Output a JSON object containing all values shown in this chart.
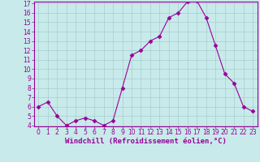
{
  "x": [
    0,
    1,
    2,
    3,
    4,
    5,
    6,
    7,
    8,
    9,
    10,
    11,
    12,
    13,
    14,
    15,
    16,
    17,
    18,
    19,
    20,
    21,
    22,
    23
  ],
  "y": [
    6,
    6.5,
    5,
    4,
    4.5,
    4.8,
    4.5,
    4,
    4.5,
    8,
    11.5,
    12,
    13,
    13.5,
    15.5,
    16,
    17.2,
    17.3,
    15.5,
    12.5,
    9.5,
    8.5,
    6,
    5.5
  ],
  "line_color": "#990099",
  "marker": "D",
  "marker_size": 2.5,
  "bg_color": "#c8eaea",
  "grid_color": "#a8cece",
  "axis_color": "#990099",
  "xlabel": "Windchill (Refroidissement éolien,°C)",
  "ylim_min": 4,
  "ylim_max": 17,
  "xlim_min": -0.5,
  "xlim_max": 23.5,
  "yticks": [
    4,
    5,
    6,
    7,
    8,
    9,
    10,
    11,
    12,
    13,
    14,
    15,
    16,
    17
  ],
  "xticks": [
    0,
    1,
    2,
    3,
    4,
    5,
    6,
    7,
    8,
    9,
    10,
    11,
    12,
    13,
    14,
    15,
    16,
    17,
    18,
    19,
    20,
    21,
    22,
    23
  ],
  "tick_label_color": "#990099",
  "tick_label_fontsize": 5.5,
  "xlabel_fontsize": 6.5
}
